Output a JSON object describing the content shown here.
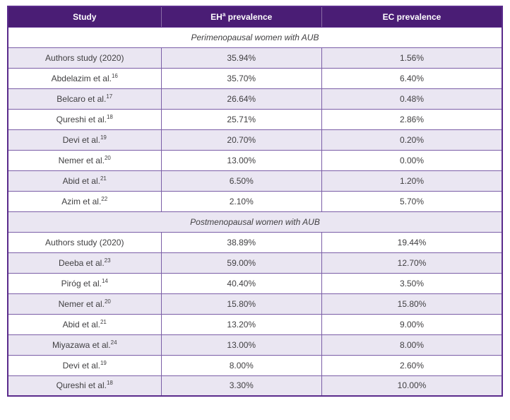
{
  "header": {
    "col_study": "Study",
    "col_eh_pre": "EH",
    "col_eh_sup": "a",
    "col_eh_post": " prevalence",
    "col_ec": "EC prevalence"
  },
  "colors": {
    "header_bg": "#4A1D75",
    "header_text": "#FFFFFF",
    "border": "#7B5EA7",
    "outer_border": "#5A2B8C",
    "row_alt_bg": "#EAE6F2",
    "row_bg": "#FFFFFF",
    "body_text": "#414042"
  },
  "sections": [
    {
      "title": "Perimenopausal women with AUB",
      "rows": [
        {
          "study": "Authors study (2020)",
          "ref": "",
          "eh": "35.94%",
          "ec": "1.56%"
        },
        {
          "study": "Abdelazim et al.",
          "ref": "16",
          "eh": "35.70%",
          "ec": "6.40%"
        },
        {
          "study": "Belcaro et al.",
          "ref": "17",
          "eh": "26.64%",
          "ec": "0.48%"
        },
        {
          "study": "Qureshi et al.",
          "ref": "18",
          "eh": "25.71%",
          "ec": "2.86%"
        },
        {
          "study": "Devi et al.",
          "ref": "19",
          "eh": "20.70%",
          "ec": "0.20%"
        },
        {
          "study": "Nemer et al.",
          "ref": "20",
          "eh": "13.00%",
          "ec": "0.00%"
        },
        {
          "study": "Abid et al.",
          "ref": "21",
          "eh": "6.50%",
          "ec": "1.20%"
        },
        {
          "study": "Azim et al.",
          "ref": "22",
          "eh": "2.10%",
          "ec": "5.70%"
        }
      ]
    },
    {
      "title": "Postmenopausal women with AUB",
      "rows": [
        {
          "study": "Authors study (2020)",
          "ref": "",
          "eh": "38.89%",
          "ec": "19.44%"
        },
        {
          "study": "Deeba et al.",
          "ref": "23",
          "eh": "59.00%",
          "ec": "12.70%"
        },
        {
          "study": "Piróg et al.",
          "ref": "14",
          "eh": "40.40%",
          "ec": "3.50%"
        },
        {
          "study": "Nemer et al.",
          "ref": "20",
          "eh": "15.80%",
          "ec": "15.80%"
        },
        {
          "study": "Abid et al.",
          "ref": "21",
          "eh": "13.20%",
          "ec": "9.00%"
        },
        {
          "study": "Miyazawa et al.",
          "ref": "24",
          "eh": "13.00%",
          "ec": "8.00%"
        },
        {
          "study": "Devi et al.",
          "ref": "19",
          "eh": "8.00%",
          "ec": "2.60%"
        },
        {
          "study": "Qureshi et al.",
          "ref": "18",
          "eh": "3.30%",
          "ec": "10.00%"
        }
      ]
    }
  ]
}
